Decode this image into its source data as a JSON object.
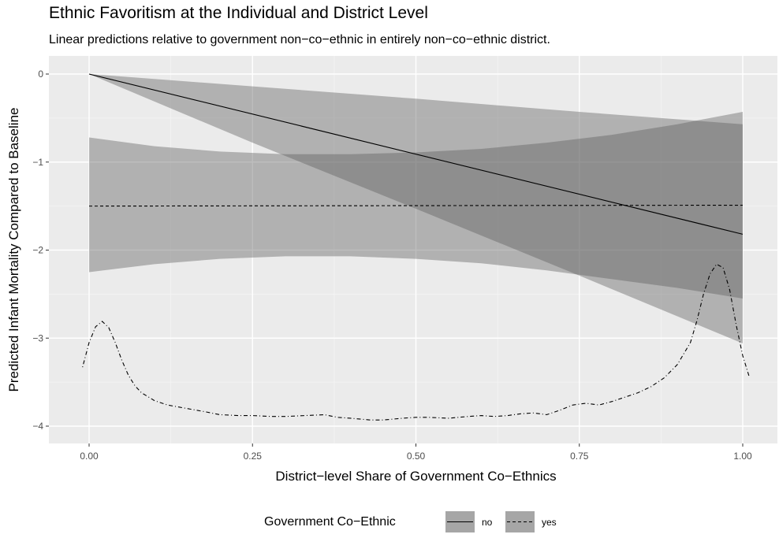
{
  "chart_data": {
    "type": "line",
    "title": "Ethnic Favoritism at the Individual and District Level",
    "subtitle": "Linear predictions relative to government non−co−ethnic in entirely non−co−ethnic district.",
    "xlabel": "District−level Share of Government Co−Ethnics",
    "ylabel": "Predicted Infant Mortality Compared to Baseline",
    "xlim": [
      -0.06,
      1.04
    ],
    "ylim": [
      -4.2,
      0.3
    ],
    "x_ticks": [
      0.0,
      0.25,
      0.5,
      0.75,
      1.0
    ],
    "x_tick_labels": [
      "0.00",
      "0.25",
      "0.50",
      "0.75",
      "1.00"
    ],
    "y_ticks": [
      0,
      -1,
      -2,
      -3,
      -4
    ],
    "y_tick_labels": [
      "0",
      "−1",
      "−2",
      "−3",
      "−4"
    ],
    "grid": true,
    "legend": {
      "title": "Government Co−Ethnic",
      "position": "bottom",
      "entries": [
        "no",
        "yes"
      ]
    },
    "series": [
      {
        "name": "no",
        "linestyle": "solid",
        "x": [
          0.0,
          1.0
        ],
        "y": [
          0.0,
          -1.82
        ],
        "ribbon": {
          "x": [
            0.0,
            0.25,
            0.5,
            0.75,
            1.0
          ],
          "lower": [
            0.0,
            -0.78,
            -1.53,
            -2.29,
            -3.06
          ],
          "upper": [
            0.0,
            -0.14,
            -0.28,
            -0.43,
            -0.57
          ]
        }
      },
      {
        "name": "yes",
        "linestyle": "dashed",
        "x": [
          0.0,
          1.0
        ],
        "y": [
          -1.5,
          -1.49
        ],
        "ribbon": {
          "x": [
            0.0,
            0.1,
            0.2,
            0.3,
            0.4,
            0.5,
            0.6,
            0.7,
            0.8,
            0.9,
            1.0
          ],
          "lower": [
            -2.25,
            -2.16,
            -2.1,
            -2.07,
            -2.07,
            -2.1,
            -2.15,
            -2.23,
            -2.33,
            -2.43,
            -2.55
          ],
          "upper": [
            -0.72,
            -0.82,
            -0.88,
            -0.91,
            -0.91,
            -0.89,
            -0.85,
            -0.78,
            -0.69,
            -0.57,
            -0.43
          ]
        }
      },
      {
        "name": "",
        "linestyle": "dotdash",
        "x": [
          -0.01,
          0.0,
          0.01,
          0.02,
          0.03,
          0.04,
          0.05,
          0.06,
          0.07,
          0.08,
          0.1,
          0.12,
          0.15,
          0.18,
          0.2,
          0.23,
          0.25,
          0.28,
          0.3,
          0.33,
          0.36,
          0.38,
          0.4,
          0.43,
          0.45,
          0.48,
          0.5,
          0.52,
          0.55,
          0.58,
          0.6,
          0.62,
          0.64,
          0.66,
          0.68,
          0.7,
          0.72,
          0.74,
          0.76,
          0.78,
          0.8,
          0.82,
          0.84,
          0.86,
          0.88,
          0.9,
          0.92,
          0.93,
          0.94,
          0.95,
          0.96,
          0.97,
          0.98,
          0.99,
          1.0,
          1.01
        ],
        "y": [
          -3.33,
          -3.05,
          -2.87,
          -2.81,
          -2.88,
          -3.05,
          -3.25,
          -3.42,
          -3.54,
          -3.62,
          -3.71,
          -3.76,
          -3.8,
          -3.84,
          -3.87,
          -3.88,
          -3.88,
          -3.89,
          -3.89,
          -3.88,
          -3.87,
          -3.9,
          -3.91,
          -3.93,
          -3.93,
          -3.91,
          -3.9,
          -3.9,
          -3.91,
          -3.89,
          -3.88,
          -3.89,
          -3.88,
          -3.86,
          -3.85,
          -3.87,
          -3.82,
          -3.76,
          -3.74,
          -3.76,
          -3.72,
          -3.67,
          -3.62,
          -3.55,
          -3.45,
          -3.3,
          -3.05,
          -2.8,
          -2.5,
          -2.27,
          -2.16,
          -2.2,
          -2.45,
          -2.85,
          -3.2,
          -3.44
        ]
      }
    ]
  }
}
